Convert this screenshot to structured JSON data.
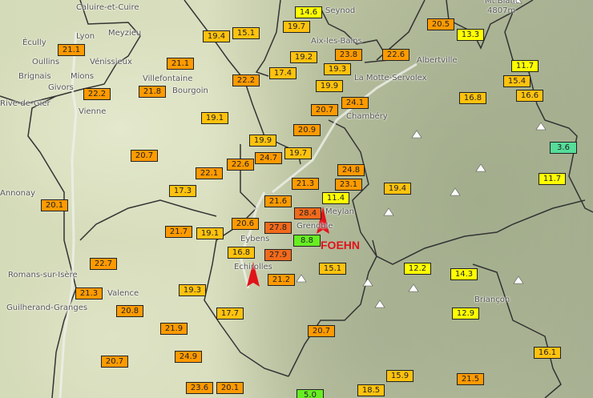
{
  "colors": {
    "lt15": "#ffff00",
    "15to20": "#ffc20e",
    "20to25": "#ff9a00",
    "gt25": "#f26a1b",
    "5to10": "#66ee22",
    "lt5": "#55dd99",
    "arrow": "#e0131a"
  },
  "annotation": "FOEHN",
  "places": [
    "Caluire-et-Cuire",
    "Lyon",
    "Meyzieu",
    "Écully",
    "Oullins",
    "Vénissieux",
    "Brignais",
    "Mions",
    "Givors",
    "Rive-de-Gier",
    "Vienne",
    "Villefontaine",
    "Bourgoin",
    "Seynod",
    "Aix-les-Bains",
    "La Motte-Servolex",
    "Chambéry",
    "Albertville",
    "Mt Blanc",
    "4807m",
    "Meylan",
    "Grenoble",
    "Eybens",
    "Echirolles",
    "Romans-sur-Isère",
    "Valence",
    "Guilherand-Granges",
    "Briançon",
    "Annonay"
  ],
  "temperatures": [
    "14.6",
    "19.7",
    "19.4",
    "15.1",
    "21.1",
    "21.1",
    "22.2",
    "17.4",
    "19.2",
    "23.8",
    "19.3",
    "19.9",
    "24.1",
    "20.7",
    "22.6",
    "20.5",
    "13.3",
    "22.2",
    "21.8",
    "19.1",
    "11.7",
    "15.4",
    "16.6",
    "16.8",
    "20.9",
    "19.9",
    "19.7",
    "24.7",
    "22.6",
    "22.1",
    "20.7",
    "17.3",
    "3.6",
    "11.7",
    "24.8",
    "23.1",
    "21.3",
    "19.4",
    "11.4",
    "21.6",
    "28.4",
    "20.1",
    "20.6",
    "21.7",
    "19.1",
    "27.8",
    "8.8",
    "16.8",
    "27.9",
    "22.7",
    "21.2",
    "15.1",
    "12.2",
    "14.3",
    "19.3",
    "21.3",
    "20.8",
    "17.7",
    "12.9",
    "21.9",
    "20.7",
    "24.9",
    "16.1",
    "20.7",
    "15.9",
    "21.5",
    "23.6",
    "20.1",
    "18.5",
    "5.0"
  ],
  "icons": {
    "peak": "mountain-peak-icon",
    "wind": "foehn-wind-arrow-icon"
  }
}
